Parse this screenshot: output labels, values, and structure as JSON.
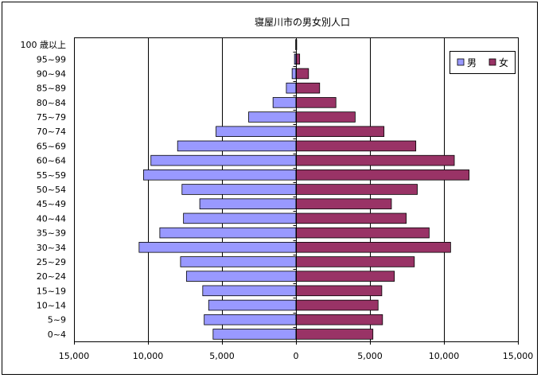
{
  "chart_data": {
    "type": "bar",
    "orientation": "horizontal",
    "layout": "population-pyramid",
    "title": "寝屋川市の男女別人口",
    "categories": [
      "100 歳以上",
      "95~99",
      "90~94",
      "85~89",
      "80~84",
      "75~79",
      "70~74",
      "65~69",
      "60~64",
      "55~59",
      "50~54",
      "45~49",
      "40~44",
      "35~39",
      "30~34",
      "25~29",
      "20~24",
      "15~19",
      "10~14",
      "5~9",
      "0~4"
    ],
    "series": [
      {
        "name": "男",
        "color": "#9999ff",
        "values": [
          20,
          100,
          260,
          650,
          1550,
          3200,
          5400,
          8000,
          9800,
          10300,
          7700,
          6500,
          7600,
          9200,
          10600,
          7800,
          7400,
          6300,
          5900,
          6200,
          5600
        ]
      },
      {
        "name": "女",
        "color": "#993366",
        "values": [
          50,
          250,
          850,
          1600,
          2700,
          4000,
          5950,
          8100,
          10700,
          11700,
          8200,
          6450,
          7450,
          9000,
          10450,
          8000,
          6650,
          5800,
          5550,
          5850,
          5200
        ]
      }
    ],
    "xlim": [
      -15000,
      15000
    ],
    "x_ticks": [
      "15,000",
      "10,000",
      "5,000",
      "0",
      "5,000",
      "10,000",
      "15,000"
    ],
    "grid": true,
    "legend_position": "top-right"
  }
}
